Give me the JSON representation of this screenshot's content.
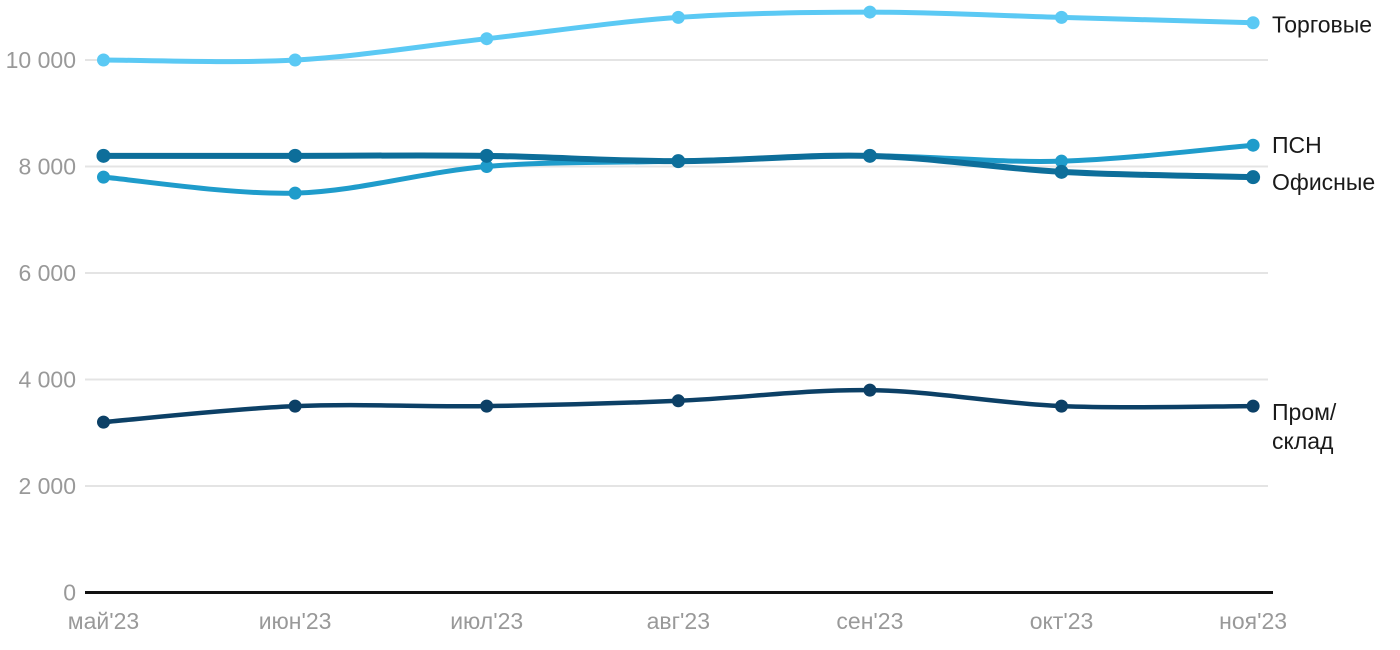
{
  "chart_data": {
    "type": "line",
    "title": "",
    "xlabel": "",
    "ylabel": "",
    "x": [
      "май'23",
      "июн'23",
      "июл'23",
      "авг'23",
      "сен'23",
      "окт'23",
      "ноя'23"
    ],
    "series": [
      {
        "name": "Торговые",
        "label_lines": [
          "Торговые"
        ],
        "color": "#5BC9F4",
        "values": [
          10000,
          10000,
          10400,
          10800,
          10900,
          10800,
          10700
        ],
        "stroke_width": 5,
        "dot_radius": 6.5,
        "label_dy": 10
      },
      {
        "name": "ПСН",
        "label_lines": [
          "ПСН"
        ],
        "color": "#1F9CCB",
        "values": [
          7800,
          7500,
          8000,
          8100,
          8200,
          8100,
          8400
        ],
        "stroke_width": 5,
        "dot_radius": 6.5,
        "label_dy": 8
      },
      {
        "name": "Офисные",
        "label_lines": [
          "Офисные"
        ],
        "color": "#0D6E9A",
        "values": [
          8200,
          8200,
          8200,
          8100,
          8200,
          7900,
          7800
        ],
        "stroke_width": 6,
        "dot_radius": 7,
        "label_dy": 13
      },
      {
        "name": "Пром/склад",
        "label_lines": [
          "Пром/",
          "склад"
        ],
        "color": "#0C4066",
        "values": [
          3200,
          3500,
          3500,
          3600,
          3800,
          3500,
          3500
        ],
        "stroke_width": 4.5,
        "dot_radius": 6.5,
        "label_dy": 14
      }
    ],
    "y_ticks": [
      {
        "value": 0,
        "label": "0"
      },
      {
        "value": 2000,
        "label": "2 000"
      },
      {
        "value": 4000,
        "label": "4 000"
      },
      {
        "value": 6000,
        "label": "6 000"
      },
      {
        "value": 8000,
        "label": "8 000"
      },
      {
        "value": 10000,
        "label": "10 000"
      }
    ],
    "ylim": [
      0,
      11200
    ],
    "grid": true,
    "legend_position": "right-of-line-ends",
    "colors": {
      "grid": "#E4E4E4",
      "axis": "#111111",
      "tick_label": "#999999",
      "series_label": "#1A1A1A",
      "background": "#FFFFFF"
    }
  }
}
